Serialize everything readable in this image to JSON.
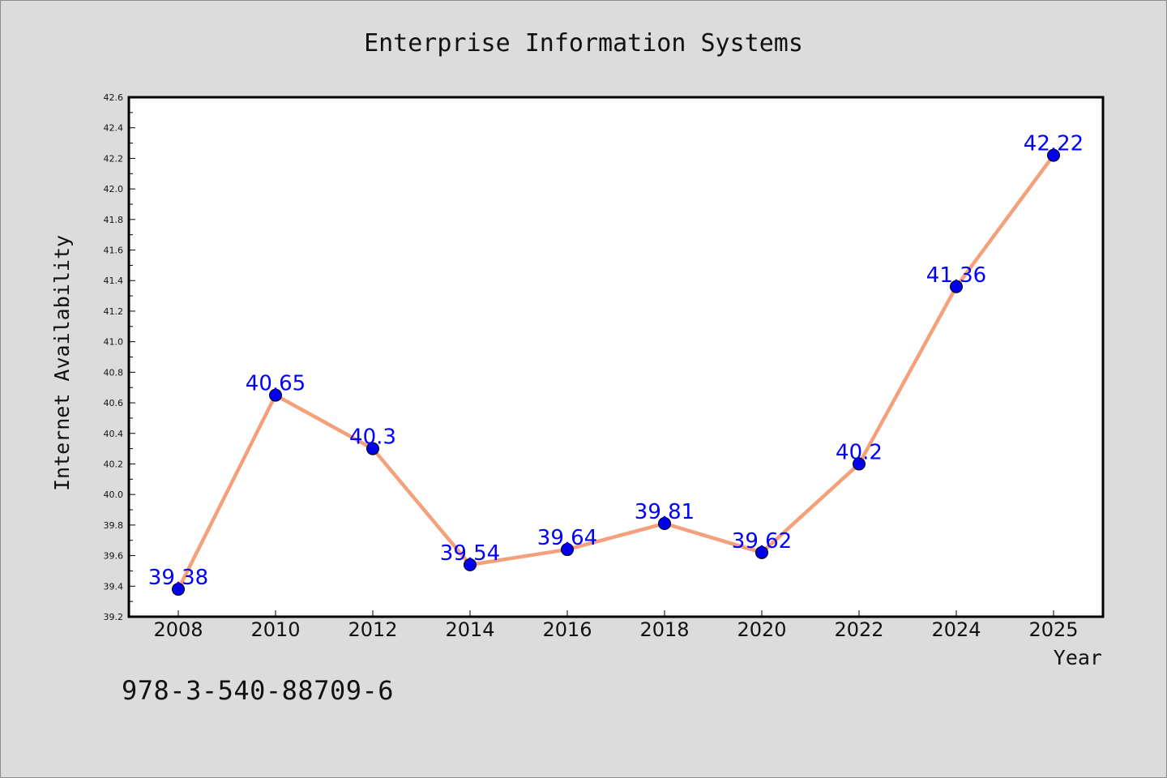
{
  "chart_data": {
    "type": "line",
    "title": "Enterprise Information Systems",
    "xlabel": "Year",
    "ylabel": "Internet Availability",
    "categories": [
      "2008",
      "2010",
      "2012",
      "2014",
      "2016",
      "2018",
      "2020",
      "2022",
      "2024",
      "2025"
    ],
    "series": [
      {
        "values": [
          39.38,
          40.65,
          40.3,
          39.54,
          39.64,
          39.81,
          39.62,
          40.2,
          41.36,
          42.22
        ]
      }
    ],
    "data_labels": [
      "39.38",
      "40.65",
      "40.3",
      "39.54",
      "39.64",
      "39.81",
      "39.62",
      "40.2",
      "41.36",
      "42.22"
    ],
    "ylim": [
      39.2,
      42.6
    ],
    "yticks": [
      "39.2",
      "39.4",
      "39.6",
      "39.8",
      "40.0",
      "40.2",
      "40.4",
      "40.6",
      "40.8",
      "41.0",
      "41.2",
      "41.4",
      "41.6",
      "41.8",
      "42.0",
      "42.2",
      "42.4",
      "42.6"
    ],
    "grid": false,
    "legend": "none",
    "colors": {
      "line": "#f4a07a",
      "marker": "#0000ee",
      "label": "#0000ff",
      "plot_bg": "#ffffff",
      "page_bg": "#dcdcdc"
    }
  },
  "footer": {
    "isbn": "978-3-540-88709-6"
  }
}
